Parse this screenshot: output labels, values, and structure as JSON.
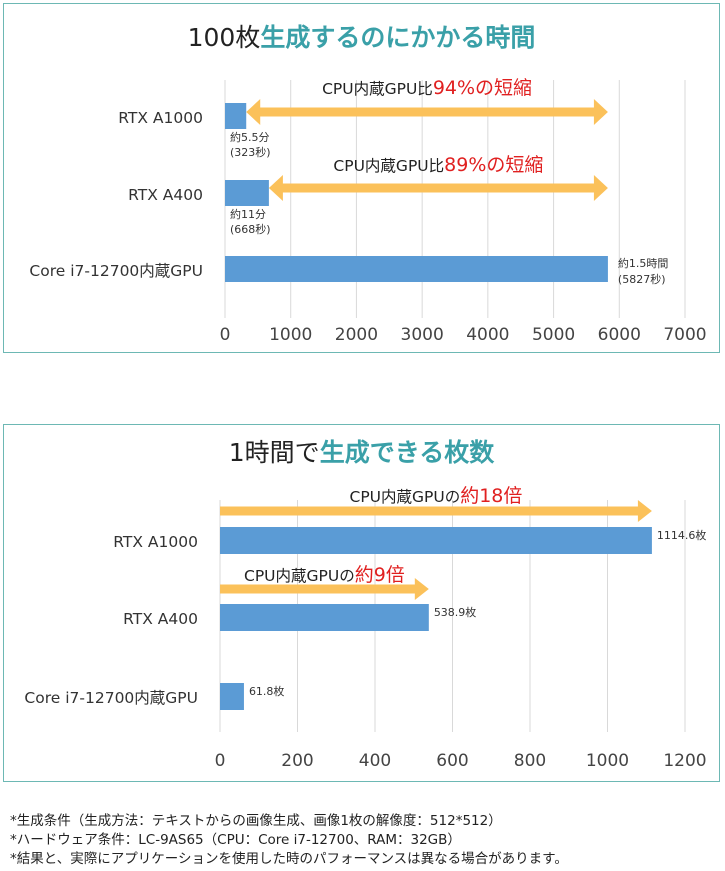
{
  "charts": [
    {
      "title_prefix": "100枚",
      "title_emphasis": "生成するのにかかる時間",
      "chart_data": {
        "type": "bar",
        "orientation": "horizontal",
        "categories": [
          "RTX A1000",
          "RTX A400",
          "Core i7-12700内蔵GPU"
        ],
        "values": [
          323,
          668,
          5827
        ],
        "xlim": [
          0,
          7000
        ],
        "xticks": [
          "0",
          "1000",
          "2000",
          "3000",
          "4000",
          "5000",
          "6000",
          "7000"
        ],
        "grid": "vertical",
        "bar_color": "#5b9bd5",
        "data_labels": [
          [
            "約5.5分",
            "(323秒)"
          ],
          [
            "約11分",
            "(668秒)"
          ],
          [
            "約1.5時間",
            "(5827秒)"
          ]
        ],
        "annotations": [
          {
            "text": "CPU内蔵GPU比",
            "highlight": "94%の短縮",
            "from": 323,
            "to": 5827
          },
          {
            "text": "CPU内蔵GPU比",
            "highlight": "89%の短縮",
            "from": 668,
            "to": 5827
          }
        ],
        "arrow_color": "#fbc15a",
        "highlight_color": "#e02020"
      }
    },
    {
      "title_prefix": "1時間で",
      "title_emphasis": "生成できる枚数",
      "chart_data": {
        "type": "bar",
        "orientation": "horizontal",
        "categories": [
          "RTX A1000",
          "RTX A400",
          "Core i7-12700内蔵GPU"
        ],
        "values": [
          1114.6,
          538.9,
          61.8
        ],
        "xlim": [
          0,
          1200
        ],
        "xticks": [
          "0",
          "200",
          "400",
          "600",
          "800",
          "1000",
          "1200"
        ],
        "grid": "vertical",
        "bar_color": "#5b9bd5",
        "data_labels": [
          "1114.6枚",
          "538.9枚",
          "61.8枚"
        ],
        "annotations": [
          {
            "text": "CPU内蔵GPUの",
            "highlight": "約18倍",
            "from": 0,
            "to": 1114.6
          },
          {
            "text": "CPU内蔵GPUの",
            "highlight": "約9倍",
            "from": 0,
            "to": 538.9
          }
        ],
        "arrow_color": "#fbc15a",
        "highlight_color": "#e02020"
      }
    }
  ],
  "notes": [
    "*生成条件（生成方法：テキストからの画像生成、画像1枚の解像度：512*512）",
    "*ハードウェア条件：LC-9AS65（CPU：Core i7-12700、RAM：32GB）",
    "*結果と、実際にアプリケーションを使用した時のパフォーマンスは異なる場合があります。"
  ]
}
